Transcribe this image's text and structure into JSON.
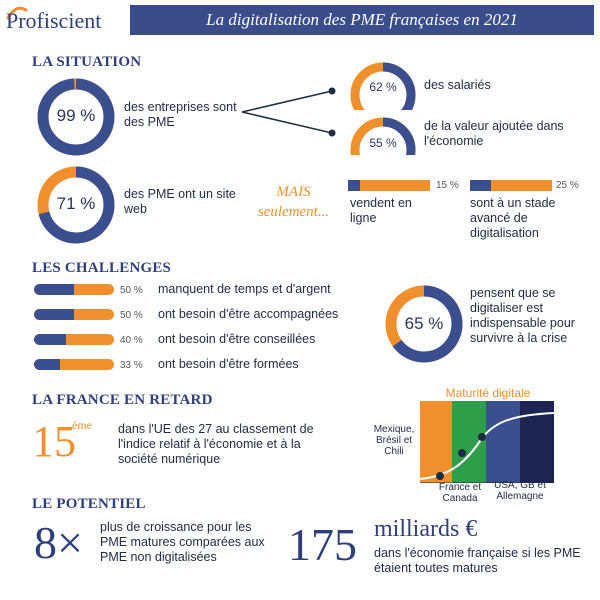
{
  "header": {
    "logo_text": "Profiscient",
    "title": "La digitalisation des PME françaises en 2021"
  },
  "colors": {
    "navy": "#2e3f7c",
    "orange": "#f0902c",
    "header_bg": "#3a4d8a",
    "green": "#2f9e4a"
  },
  "situation": {
    "title": "LA SITUATION",
    "stat1": {
      "value": 99,
      "label": "99 %",
      "text": "des entreprises sont des PME"
    },
    "stat2": {
      "value": 62,
      "label": "62 %",
      "text": "des salariés"
    },
    "stat3": {
      "value": 55,
      "label": "55 %",
      "text": "de la valeur ajoutée dans l'économie"
    },
    "stat4": {
      "value": 71,
      "label": "71 %",
      "text": "des PME ont un site web"
    },
    "mais": "MAIS seulement...",
    "stat5": {
      "value": 15,
      "label": "15 %",
      "text": "vendent en ligne"
    },
    "stat6": {
      "value": 25,
      "label": "25 %",
      "text": "sont à un stade avancé de digitalisation"
    }
  },
  "challenges": {
    "title": "LES CHALLENGES",
    "items": [
      {
        "value": 50,
        "label": "50 %",
        "text": "manquent de temps et d'argent"
      },
      {
        "value": 50,
        "label": "50 %",
        "text": "ont besoin d'être accompagnées"
      },
      {
        "value": 40,
        "label": "40 %",
        "text": "ont besoin d'être conseillées"
      },
      {
        "value": 33,
        "label": "33 %",
        "text": "ont besoin d'être formées"
      }
    ],
    "donut": {
      "value": 65,
      "label": "65 %",
      "text": "pensent que se digitaliser est indispensable pour survivre à la crise"
    }
  },
  "retard": {
    "title": "LA FRANCE EN RETARD",
    "rank_number": "15",
    "rank_suffix": "ème",
    "text": "dans l'UE des 27 au classement de l'indice relatif à l'économie et à la société numérique",
    "chart_title": "Maturité digitale",
    "labels": {
      "mexique": "Mexique, Brésil et Chili",
      "france": "France et Canada",
      "usa": "USA, GB et Allemagne"
    }
  },
  "potentiel": {
    "title": "LE POTENTIEL",
    "big1": "8×",
    "text1": "plus de croissance pour les PME matures comparées aux PME non digitalisées",
    "big2": "175",
    "big2_unit": "milliards €",
    "text2": "dans l'économie française si les PME étaient toutes matures"
  }
}
